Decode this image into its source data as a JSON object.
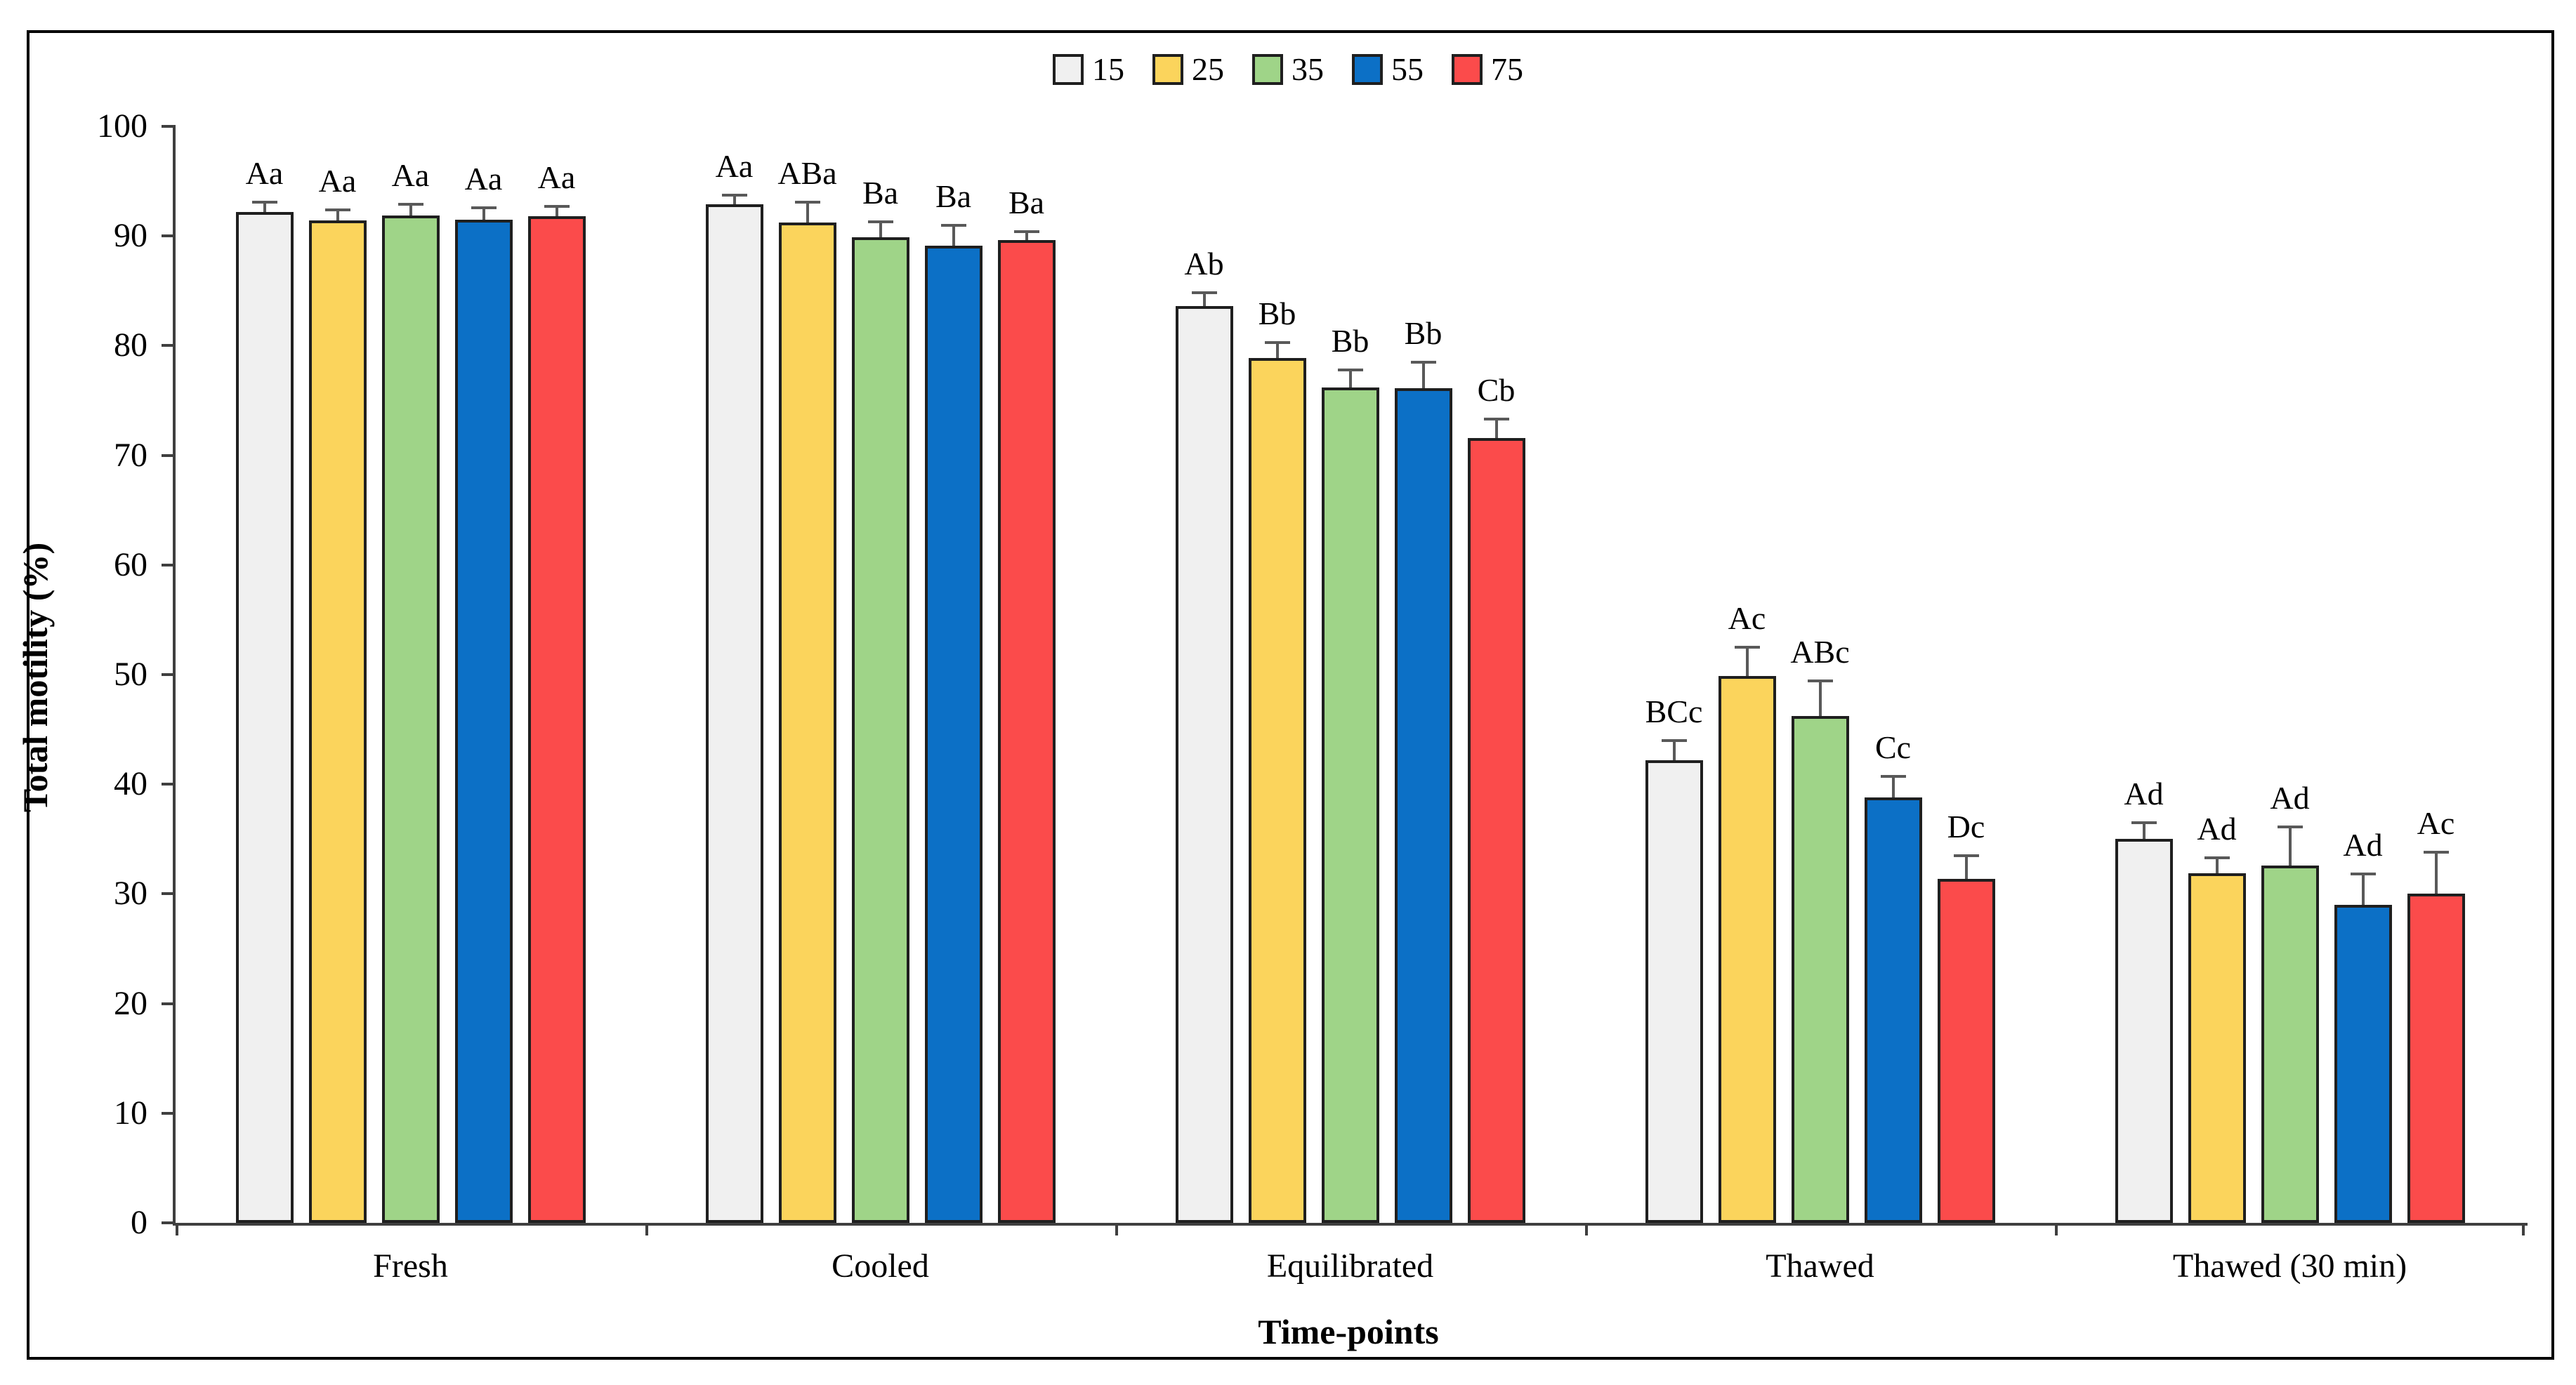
{
  "figure": {
    "frame_border_color": "#000000",
    "background_color": "#ffffff"
  },
  "chart_data": {
    "type": "bar",
    "title": "",
    "xlabel": "Time-points",
    "ylabel": "Total motility (%)",
    "ylim": [
      0,
      100
    ],
    "ytick_step": 10,
    "ytick_labels": [
      "0",
      "10",
      "20",
      "30",
      "40",
      "50",
      "60",
      "70",
      "80",
      "90",
      "100"
    ],
    "grid": false,
    "legend_position": "top",
    "categories": [
      "Fresh",
      "Cooled",
      "Equilibrated",
      "Thawed",
      "Thawed (30 min)"
    ],
    "legend": {
      "entries": [
        {
          "label": "15",
          "color": "#F0F0F0"
        },
        {
          "label": "25",
          "color": "#FBD45C"
        },
        {
          "label": "35",
          "color": "#9FD488"
        },
        {
          "label": "55",
          "color": "#0C70C6"
        },
        {
          "label": "75",
          "color": "#FB4B4B"
        }
      ]
    },
    "series": [
      {
        "name": "15",
        "color": "#F0F0F0",
        "values": [
          92.2,
          92.9,
          83.6,
          42.2,
          35.0
        ],
        "errors": [
          0.9,
          0.8,
          1.2,
          1.8,
          1.5
        ],
        "annotations": [
          "Aa",
          "Aa",
          "Ab",
          "BCc",
          "Ad"
        ]
      },
      {
        "name": "25",
        "color": "#FBD45C",
        "values": [
          91.4,
          91.2,
          78.9,
          49.9,
          31.9
        ],
        "errors": [
          1.0,
          1.9,
          1.4,
          2.6,
          1.4
        ],
        "annotations": [
          "Aa",
          "ABa",
          "Bb",
          "Ac",
          "Ad"
        ]
      },
      {
        "name": "35",
        "color": "#9FD488",
        "values": [
          91.9,
          89.9,
          76.2,
          46.2,
          32.6
        ],
        "errors": [
          1.0,
          1.4,
          1.6,
          3.2,
          3.5
        ],
        "annotations": [
          "Aa",
          "Ba",
          "Bb",
          "ABc",
          "Ad"
        ]
      },
      {
        "name": "55",
        "color": "#0C70C6",
        "values": [
          91.5,
          89.1,
          76.1,
          38.8,
          29.0
        ],
        "errors": [
          1.1,
          1.9,
          2.4,
          1.9,
          2.8
        ],
        "annotations": [
          "Aa",
          "Ba",
          "Bb",
          "Cc",
          "Ad"
        ]
      },
      {
        "name": "75",
        "color": "#FB4B4B",
        "values": [
          91.8,
          89.6,
          71.6,
          31.4,
          30.0
        ],
        "errors": [
          0.9,
          0.8,
          1.7,
          2.1,
          3.8
        ],
        "annotations": [
          "Aa",
          "Ba",
          "Cb",
          "Dc",
          "Ac"
        ]
      }
    ],
    "error_bar_color": "#595959",
    "bar_border_color": "#1F1F1F",
    "axis_color": "#3F3F3F"
  }
}
